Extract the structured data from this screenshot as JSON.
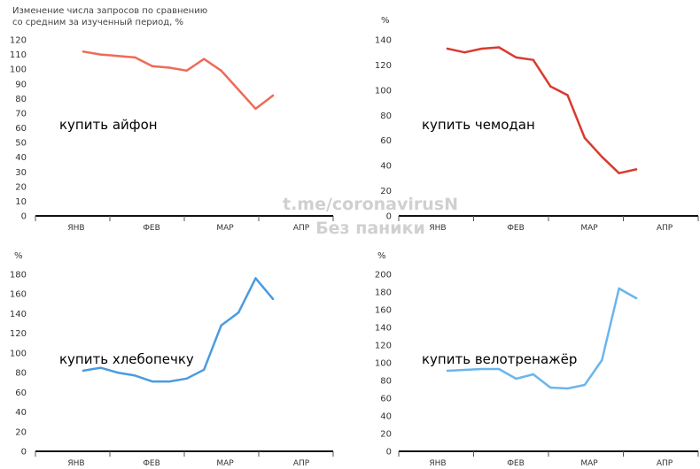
{
  "title_lines": [
    "Изменение числа запросов по сравнению",
    "со средним за изученный период, %"
  ],
  "watermark": [
    "t.me/coronavirusN",
    "Без паники"
  ],
  "months": [
    "ЯНВ",
    "ФЕВ",
    "МАР",
    "АПР"
  ],
  "chart_data": [
    {
      "type": "line",
      "annotation": "купить айфон",
      "ylabel": "",
      "ylim": [
        0,
        120
      ],
      "yticks": [
        0,
        10,
        20,
        30,
        40,
        50,
        60,
        70,
        80,
        90,
        100,
        110,
        120
      ],
      "color": "#ef6a57",
      "series": [
        {
          "values": [
            112,
            110,
            109,
            108,
            102,
            101,
            99,
            107,
            99,
            86,
            73,
            82
          ]
        }
      ]
    },
    {
      "type": "line",
      "annotation": "купить чемодан",
      "ylabel": "%",
      "ylim": [
        0,
        140
      ],
      "yticks": [
        0,
        20,
        40,
        60,
        80,
        100,
        120,
        140
      ],
      "color": "#d93a2f",
      "series": [
        {
          "values": [
            133,
            130,
            133,
            134,
            126,
            124,
            103,
            96,
            62,
            47,
            34,
            37
          ]
        }
      ]
    },
    {
      "type": "line",
      "annotation": "купить хлебопечку",
      "ylabel": "%",
      "ylim": [
        0,
        180
      ],
      "yticks": [
        0,
        20,
        40,
        60,
        80,
        100,
        120,
        140,
        160,
        180
      ],
      "color": "#4b9be0",
      "series": [
        {
          "values": [
            82,
            85,
            80,
            77,
            71,
            71,
            74,
            83,
            128,
            141,
            176,
            155
          ]
        }
      ]
    },
    {
      "type": "line",
      "annotation": "купить велотренажёр",
      "ylabel": "%",
      "ylim": [
        0,
        200
      ],
      "yticks": [
        0,
        20,
        40,
        60,
        80,
        100,
        120,
        140,
        160,
        180,
        200
      ],
      "color": "#6ab6ec",
      "series": [
        {
          "values": [
            91,
            92,
            93,
            93,
            82,
            87,
            72,
            71,
            75,
            103,
            184,
            173
          ]
        }
      ]
    }
  ]
}
